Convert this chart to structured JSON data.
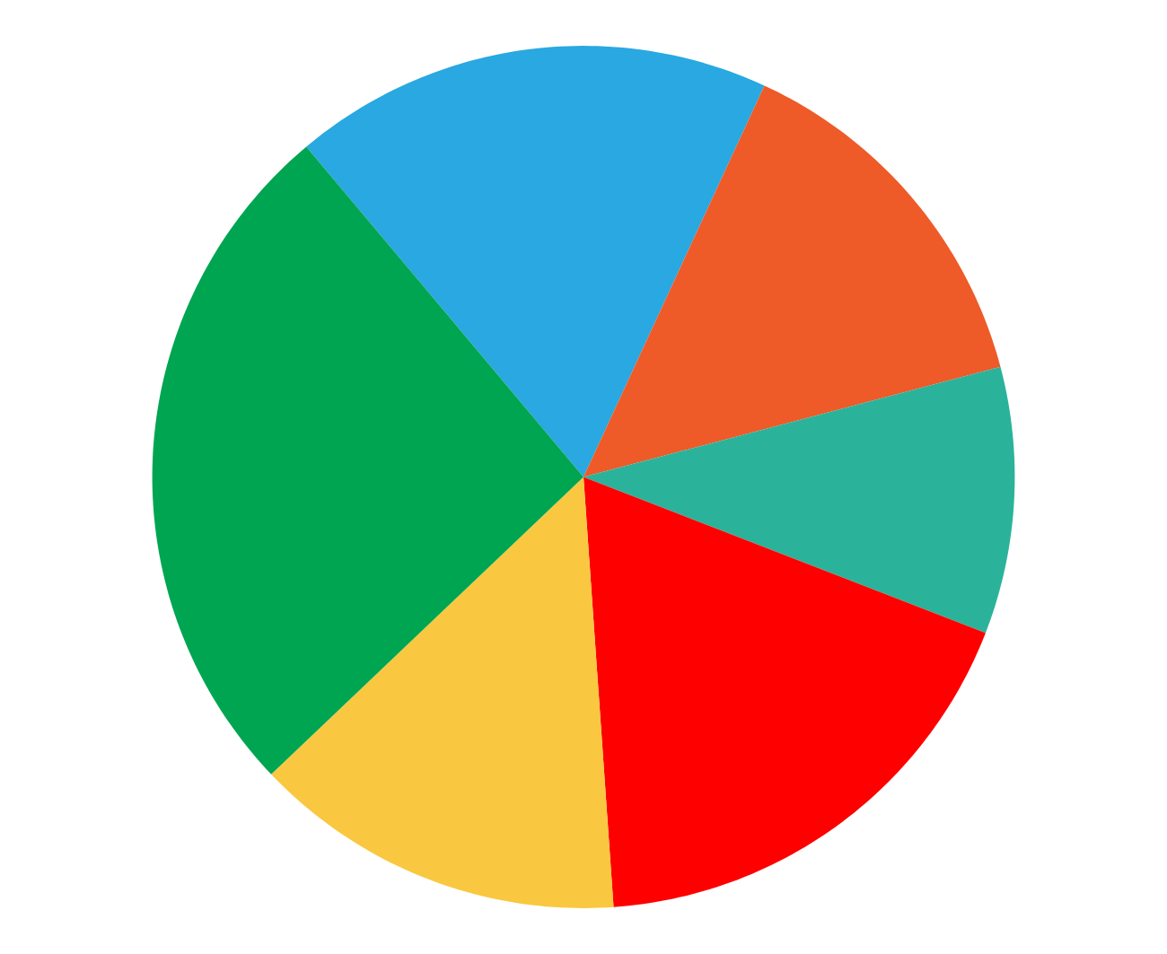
{
  "chart_data": {
    "type": "pie",
    "categories": [
      null,
      null,
      null,
      null,
      null,
      null
    ],
    "values": [
      18,
      14,
      10,
      18,
      14,
      26
    ],
    "colors": [
      "#29a8e1",
      "#ee5a28",
      "#2ab39a",
      "#fe0000",
      "#f9c840",
      "#00a551"
    ]
  }
}
